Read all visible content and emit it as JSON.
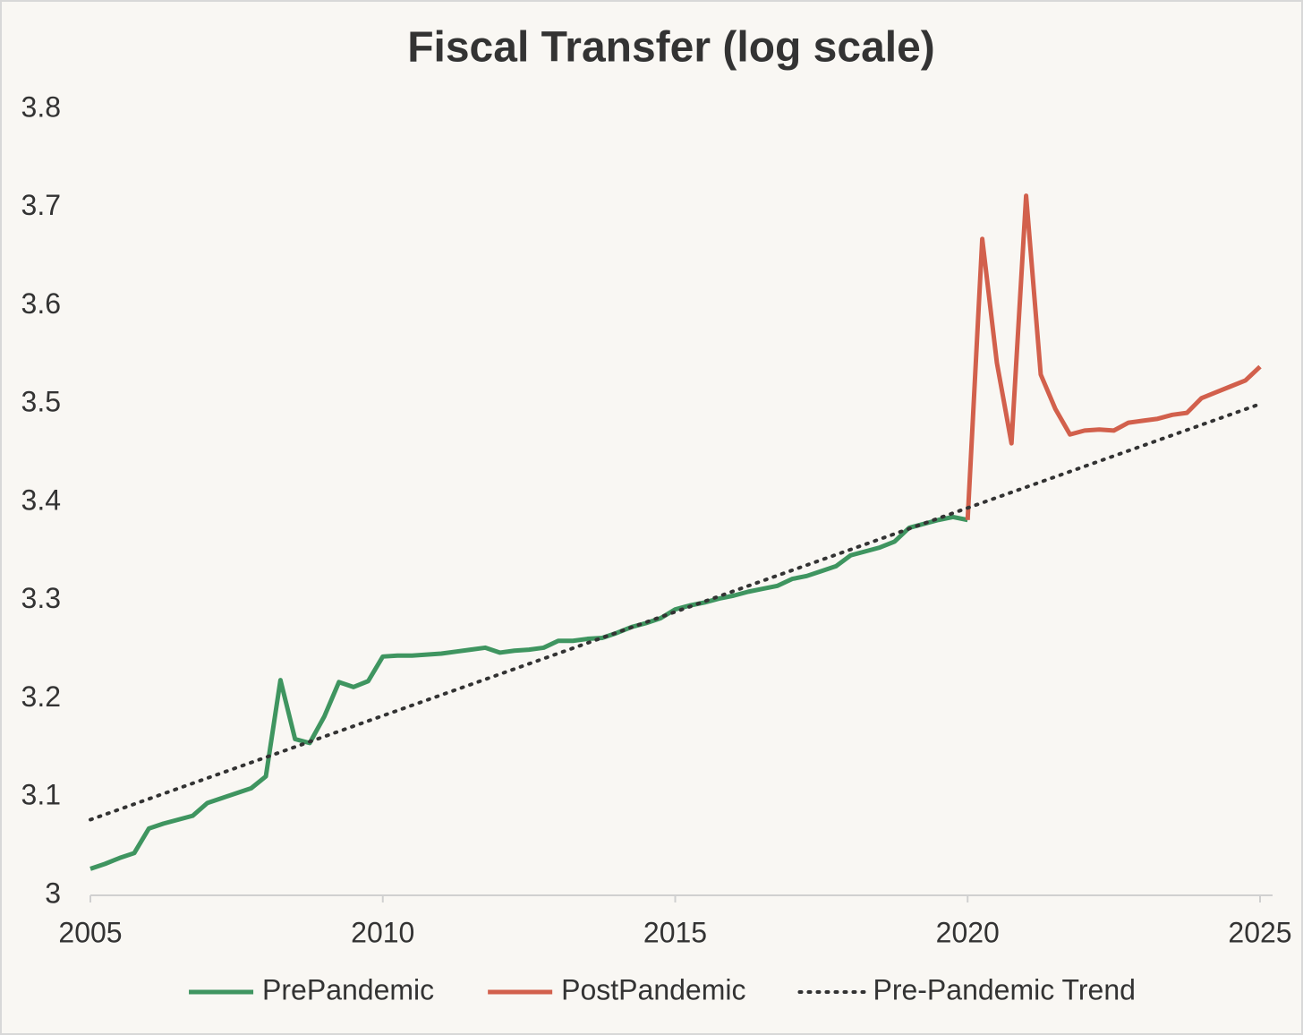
{
  "chart_data": {
    "type": "line",
    "title": "Fiscal Transfer (log scale)",
    "xlim": [
      2005,
      2025
    ],
    "xticks": [
      2005,
      2010,
      2015,
      2020,
      2025
    ],
    "ylim": [
      3,
      3.8
    ],
    "yticks": [
      3,
      3.1,
      3.2,
      3.3,
      3.4,
      3.5,
      3.6,
      3.7,
      3.8
    ],
    "grid": false,
    "legend": "bottom",
    "series": [
      {
        "name": "PrePandemic",
        "color": "#3f9560",
        "style": "solid",
        "x": [
          2005,
          2005.25,
          2005.5,
          2005.75,
          2006,
          2006.25,
          2006.5,
          2006.75,
          2007,
          2007.25,
          2007.5,
          2007.75,
          2008,
          2008.25,
          2008.5,
          2008.75,
          2009,
          2009.25,
          2009.5,
          2009.75,
          2010,
          2010.25,
          2010.5,
          2010.75,
          2011,
          2011.25,
          2011.5,
          2011.75,
          2012,
          2012.25,
          2012.5,
          2012.75,
          2013,
          2013.25,
          2013.5,
          2013.75,
          2014,
          2014.25,
          2014.5,
          2014.75,
          2015,
          2015.25,
          2015.5,
          2015.75,
          2016,
          2016.25,
          2016.5,
          2016.75,
          2017,
          2017.25,
          2017.5,
          2017.75,
          2018,
          2018.25,
          2018.5,
          2018.75,
          2019,
          2019.25,
          2019.5,
          2019.75,
          2020
        ],
        "values": [
          3.027,
          3.032,
          3.038,
          3.043,
          3.068,
          3.073,
          3.077,
          3.081,
          3.094,
          3.099,
          3.104,
          3.109,
          3.121,
          3.219,
          3.159,
          3.155,
          3.182,
          3.217,
          3.212,
          3.218,
          3.243,
          3.244,
          3.244,
          3.245,
          3.246,
          3.248,
          3.25,
          3.252,
          3.247,
          3.249,
          3.25,
          3.252,
          3.259,
          3.259,
          3.261,
          3.262,
          3.267,
          3.273,
          3.277,
          3.282,
          3.291,
          3.295,
          3.298,
          3.302,
          3.305,
          3.309,
          3.312,
          3.315,
          3.322,
          3.325,
          3.33,
          3.335,
          3.346,
          3.35,
          3.354,
          3.36,
          3.374,
          3.378,
          3.382,
          3.385,
          3.382
        ]
      },
      {
        "name": "PostPandemic",
        "color": "#d2604c",
        "style": "solid",
        "x": [
          2020,
          2020.25,
          2020.5,
          2020.75,
          2021,
          2021.25,
          2021.5,
          2021.75,
          2022,
          2022.25,
          2022.5,
          2022.75,
          2023,
          2023.25,
          2023.5,
          2023.75,
          2024,
          2024.25,
          2024.5,
          2024.75,
          2025
        ],
        "values": [
          3.382,
          3.668,
          3.542,
          3.46,
          3.712,
          3.53,
          3.495,
          3.469,
          3.473,
          3.474,
          3.473,
          3.481,
          3.483,
          3.485,
          3.489,
          3.491,
          3.506,
          3.512,
          3.518,
          3.524,
          3.538
        ]
      },
      {
        "name": "Pre-Pandemic Trend",
        "color": "#333333",
        "style": "dotted",
        "x": [
          2005,
          2025
        ],
        "values": [
          3.077,
          3.5
        ]
      }
    ]
  }
}
